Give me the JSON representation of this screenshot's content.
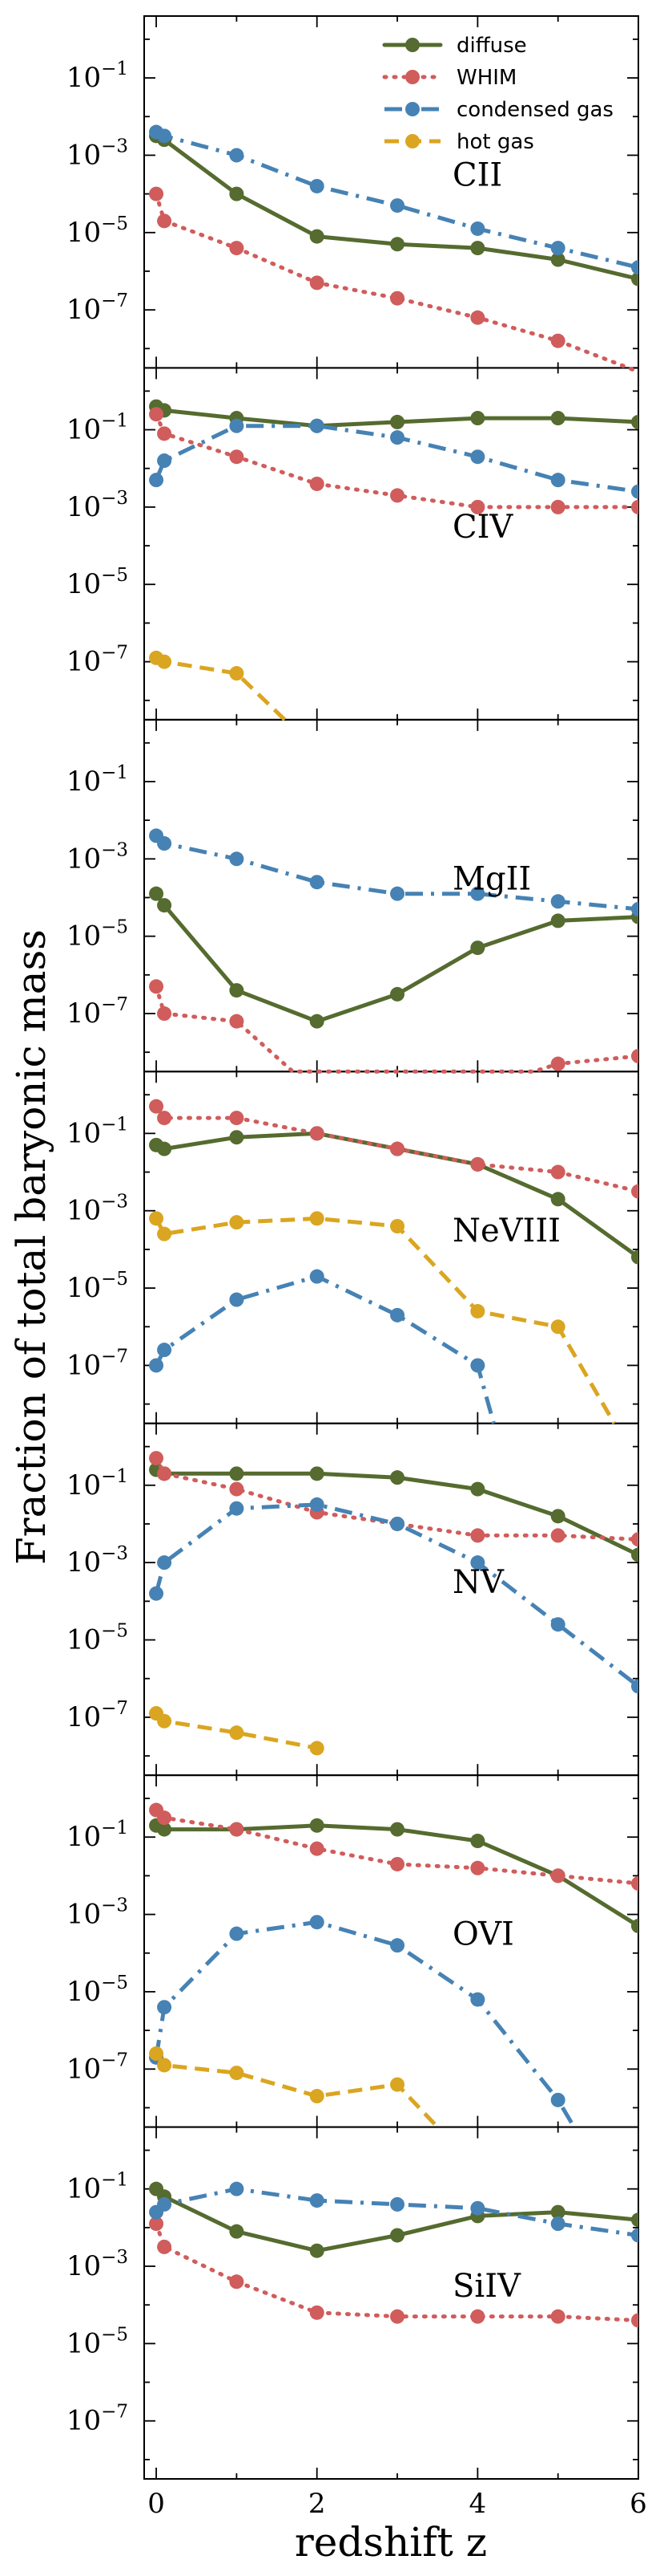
{
  "chart_data": {
    "type": "line",
    "xlabel": "redshift z",
    "ylabel": "Fraction of total baryonic mass",
    "xlim": [
      -0.15,
      6
    ],
    "ylim_log10": [
      -8.5,
      0.6
    ],
    "x_ticks": [
      0,
      2,
      4,
      6
    ],
    "x_tick_labels": [
      "0",
      "2",
      "4",
      "6"
    ],
    "y_ticks_log10": [
      -1,
      -3,
      -5,
      -7
    ],
    "y_tick_labels": [
      {
        "base": "10",
        "exp": "−1"
      },
      {
        "base": "10",
        "exp": "−3"
      },
      {
        "base": "10",
        "exp": "−5"
      },
      {
        "base": "10",
        "exp": "−7"
      }
    ],
    "series_styles": [
      {
        "name": "diffuse",
        "color": "#556b2f",
        "dash": "solid"
      },
      {
        "name": "WHIM",
        "color": "#d05c5c",
        "dash": "dotted"
      },
      {
        "name": "condensed gas",
        "color": "#4682b4",
        "dash": "dashdot"
      },
      {
        "name": "hot gas",
        "color": "#daa520",
        "dash": "dashed"
      }
    ],
    "legend": {
      "position": "top-right",
      "entries": [
        "diffuse",
        "WHIM",
        "condensed gas",
        "hot gas"
      ]
    },
    "panels": [
      {
        "ion": "CII",
        "series": [
          {
            "name": "diffuse",
            "points": [
              [
                0,
                -2.5
              ],
              [
                0.1,
                -2.6
              ],
              [
                1,
                -4.0
              ],
              [
                2,
                -5.1
              ],
              [
                3,
                -5.3
              ],
              [
                4,
                -5.4
              ],
              [
                5,
                -5.7
              ],
              [
                6,
                -6.2
              ]
            ]
          },
          {
            "name": "WHIM",
            "points": [
              [
                0,
                -4.0
              ],
              [
                0.1,
                -4.7
              ],
              [
                1,
                -5.4
              ],
              [
                2,
                -6.3
              ],
              [
                3,
                -6.7
              ],
              [
                4,
                -7.2
              ],
              [
                5,
                -7.8
              ],
              [
                6,
                -8.6
              ]
            ]
          },
          {
            "name": "condensed gas",
            "points": [
              [
                0,
                -2.4
              ],
              [
                0.1,
                -2.5
              ],
              [
                1,
                -3.0
              ],
              [
                2,
                -3.8
              ],
              [
                3,
                -4.3
              ],
              [
                4,
                -4.9
              ],
              [
                5,
                -5.4
              ],
              [
                6,
                -5.9
              ]
            ]
          },
          {
            "name": "hot gas",
            "points": []
          }
        ]
      },
      {
        "ion": "CIV",
        "series": [
          {
            "name": "diffuse",
            "points": [
              [
                0,
                -0.4
              ],
              [
                0.1,
                -0.5
              ],
              [
                1,
                -0.7
              ],
              [
                2,
                -0.9
              ],
              [
                3,
                -0.8
              ],
              [
                4,
                -0.7
              ],
              [
                5,
                -0.7
              ],
              [
                6,
                -0.8
              ]
            ]
          },
          {
            "name": "WHIM",
            "points": [
              [
                0,
                -0.6
              ],
              [
                0.1,
                -1.1
              ],
              [
                1,
                -1.7
              ],
              [
                2,
                -2.4
              ],
              [
                3,
                -2.7
              ],
              [
                4,
                -3.0
              ],
              [
                5,
                -3.0
              ],
              [
                6,
                -3.0
              ]
            ]
          },
          {
            "name": "condensed gas",
            "points": [
              [
                0,
                -2.3
              ],
              [
                0.1,
                -1.8
              ],
              [
                1,
                -0.9
              ],
              [
                2,
                -0.9
              ],
              [
                3,
                -1.2
              ],
              [
                4,
                -1.7
              ],
              [
                5,
                -2.3
              ],
              [
                6,
                -2.6
              ]
            ]
          },
          {
            "name": "hot gas",
            "points": [
              [
                0,
                -6.9
              ],
              [
                0.1,
                -7.0
              ],
              [
                1,
                -7.3
              ],
              [
                1.6,
                -8.5
              ]
            ]
          }
        ]
      },
      {
        "ion": "MgII",
        "series": [
          {
            "name": "diffuse",
            "points": [
              [
                0,
                -3.9
              ],
              [
                0.1,
                -4.2
              ],
              [
                1,
                -6.4
              ],
              [
                2,
                -7.2
              ],
              [
                3,
                -6.5
              ],
              [
                4,
                -5.3
              ],
              [
                5,
                -4.6
              ],
              [
                6,
                -4.5
              ]
            ]
          },
          {
            "name": "WHIM",
            "points": [
              [
                0,
                -6.3
              ],
              [
                0.1,
                -7.0
              ],
              [
                1,
                -7.2
              ],
              [
                1.7,
                -8.5
              ],
              [
                4.7,
                -8.5
              ],
              [
                5,
                -8.3
              ],
              [
                6,
                -8.1
              ]
            ]
          },
          {
            "name": "condensed gas",
            "points": [
              [
                0,
                -2.4
              ],
              [
                0.1,
                -2.6
              ],
              [
                1,
                -3.0
              ],
              [
                2,
                -3.6
              ],
              [
                3,
                -3.9
              ],
              [
                4,
                -3.9
              ],
              [
                5,
                -4.1
              ],
              [
                6,
                -4.3
              ]
            ]
          },
          {
            "name": "hot gas",
            "points": []
          }
        ]
      },
      {
        "ion": "NeVIII",
        "series": [
          {
            "name": "diffuse",
            "points": [
              [
                0,
                -1.3
              ],
              [
                0.1,
                -1.4
              ],
              [
                1,
                -1.1
              ],
              [
                2,
                -1.0
              ],
              [
                3,
                -1.4
              ],
              [
                4,
                -1.8
              ],
              [
                5,
                -2.7
              ],
              [
                6,
                -4.2
              ]
            ]
          },
          {
            "name": "WHIM",
            "points": [
              [
                0,
                -0.3
              ],
              [
                0.1,
                -0.6
              ],
              [
                1,
                -0.6
              ],
              [
                2,
                -1.0
              ],
              [
                3,
                -1.4
              ],
              [
                4,
                -1.8
              ],
              [
                5,
                -2.0
              ],
              [
                6,
                -2.5
              ]
            ]
          },
          {
            "name": "condensed gas",
            "points": [
              [
                0,
                -7.0
              ],
              [
                0.1,
                -6.6
              ],
              [
                1,
                -5.3
              ],
              [
                2,
                -4.7
              ],
              [
                3,
                -5.7
              ],
              [
                4,
                -7.0
              ],
              [
                4.2,
                -8.5
              ]
            ]
          },
          {
            "name": "hot gas",
            "points": [
              [
                0,
                -3.2
              ],
              [
                0.1,
                -3.6
              ],
              [
                1,
                -3.3
              ],
              [
                2,
                -3.2
              ],
              [
                3,
                -3.4
              ],
              [
                4,
                -5.6
              ],
              [
                5,
                -6.0
              ],
              [
                5.7,
                -8.5
              ]
            ]
          }
        ]
      },
      {
        "ion": "NV",
        "series": [
          {
            "name": "diffuse",
            "points": [
              [
                0,
                -0.6
              ],
              [
                0.1,
                -0.7
              ],
              [
                1,
                -0.7
              ],
              [
                2,
                -0.7
              ],
              [
                3,
                -0.8
              ],
              [
                4,
                -1.1
              ],
              [
                5,
                -1.8
              ],
              [
                6,
                -2.8
              ]
            ]
          },
          {
            "name": "WHIM",
            "points": [
              [
                0,
                -0.3
              ],
              [
                0.1,
                -0.7
              ],
              [
                1,
                -1.1
              ],
              [
                2,
                -1.7
              ],
              [
                3,
                -2.0
              ],
              [
                4,
                -2.3
              ],
              [
                5,
                -2.3
              ],
              [
                6,
                -2.4
              ]
            ]
          },
          {
            "name": "condensed gas",
            "points": [
              [
                0,
                -3.8
              ],
              [
                0.1,
                -3.0
              ],
              [
                1,
                -1.6
              ],
              [
                2,
                -1.5
              ],
              [
                3,
                -2.0
              ],
              [
                4,
                -3.0
              ],
              [
                5,
                -4.6
              ],
              [
                6,
                -6.2
              ]
            ]
          },
          {
            "name": "hot gas",
            "points": [
              [
                0,
                -6.9
              ],
              [
                0.1,
                -7.1
              ],
              [
                1,
                -7.4
              ],
              [
                2,
                -7.8
              ]
            ]
          }
        ]
      },
      {
        "ion": "OVI",
        "series": [
          {
            "name": "diffuse",
            "points": [
              [
                0,
                -0.7
              ],
              [
                0.1,
                -0.8
              ],
              [
                1,
                -0.8
              ],
              [
                2,
                -0.7
              ],
              [
                3,
                -0.8
              ],
              [
                4,
                -1.1
              ],
              [
                5,
                -2.0
              ],
              [
                6,
                -3.3
              ]
            ]
          },
          {
            "name": "WHIM",
            "points": [
              [
                0,
                -0.3
              ],
              [
                0.1,
                -0.5
              ],
              [
                1,
                -0.8
              ],
              [
                2,
                -1.3
              ],
              [
                3,
                -1.7
              ],
              [
                4,
                -1.8
              ],
              [
                5,
                -2.0
              ],
              [
                6,
                -2.2
              ]
            ]
          },
          {
            "name": "condensed gas",
            "points": [
              [
                0,
                -6.7
              ],
              [
                0.1,
                -5.4
              ],
              [
                1,
                -3.5
              ],
              [
                2,
                -3.2
              ],
              [
                3,
                -3.8
              ],
              [
                4,
                -5.2
              ],
              [
                5,
                -7.8
              ],
              [
                5.2,
                -8.5
              ]
            ]
          },
          {
            "name": "hot gas",
            "points": [
              [
                0,
                -6.6
              ],
              [
                0.1,
                -6.9
              ],
              [
                1,
                -7.1
              ],
              [
                2,
                -7.7
              ],
              [
                3,
                -7.4
              ],
              [
                3.5,
                -8.5
              ]
            ]
          }
        ]
      },
      {
        "ion": "SiIV",
        "series": [
          {
            "name": "diffuse",
            "points": [
              [
                0,
                -1.0
              ],
              [
                0.1,
                -1.2
              ],
              [
                1,
                -2.1
              ],
              [
                2,
                -2.6
              ],
              [
                3,
                -2.2
              ],
              [
                4,
                -1.7
              ],
              [
                5,
                -1.6
              ],
              [
                6,
                -1.8
              ]
            ]
          },
          {
            "name": "WHIM",
            "points": [
              [
                0,
                -1.9
              ],
              [
                0.1,
                -2.5
              ],
              [
                1,
                -3.4
              ],
              [
                2,
                -4.2
              ],
              [
                3,
                -4.3
              ],
              [
                4,
                -4.3
              ],
              [
                5,
                -4.3
              ],
              [
                6,
                -4.4
              ]
            ]
          },
          {
            "name": "condensed gas",
            "points": [
              [
                0,
                -1.6
              ],
              [
                0.1,
                -1.4
              ],
              [
                1,
                -1.0
              ],
              [
                2,
                -1.3
              ],
              [
                3,
                -1.4
              ],
              [
                4,
                -1.5
              ],
              [
                5,
                -1.9
              ],
              [
                6,
                -2.2
              ]
            ]
          },
          {
            "name": "hot gas",
            "points": []
          }
        ]
      }
    ]
  }
}
